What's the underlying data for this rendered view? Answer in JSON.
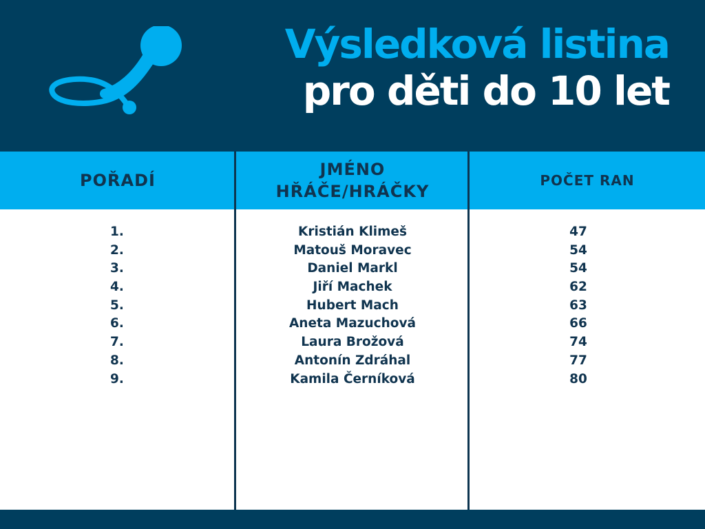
{
  "header": {
    "title_line1": "Výsledková listina",
    "title_line2": "pro děti do 10 let",
    "logo_icon": "golf-club-icon",
    "background_color": "#003e5e",
    "accent_color": "#00aeef"
  },
  "table": {
    "columns": {
      "rank": "POŘADÍ",
      "name_line1": "JMÉNO",
      "name_line2": "HŘÁČE/HRÁČKY",
      "shots": "POČET RAN"
    },
    "rows": [
      {
        "rank": "1.",
        "name": "Kristián Klimeš",
        "shots": "47"
      },
      {
        "rank": "2.",
        "name": "Matouš Moravec",
        "shots": "54"
      },
      {
        "rank": "3.",
        "name": "Daniel Markl",
        "shots": "54"
      },
      {
        "rank": "4.",
        "name": "Jiří Machek",
        "shots": "62"
      },
      {
        "rank": "5.",
        "name": "Hubert Mach",
        "shots": "63"
      },
      {
        "rank": "6.",
        "name": "Aneta Mazuchová",
        "shots": "66"
      },
      {
        "rank": "7.",
        "name": "Laura Brožová",
        "shots": "74"
      },
      {
        "rank": "8.",
        "name": "Antonín Zdráhal",
        "shots": "77"
      },
      {
        "rank": "9.",
        "name": "Kamila Černíková",
        "shots": "80"
      }
    ]
  }
}
